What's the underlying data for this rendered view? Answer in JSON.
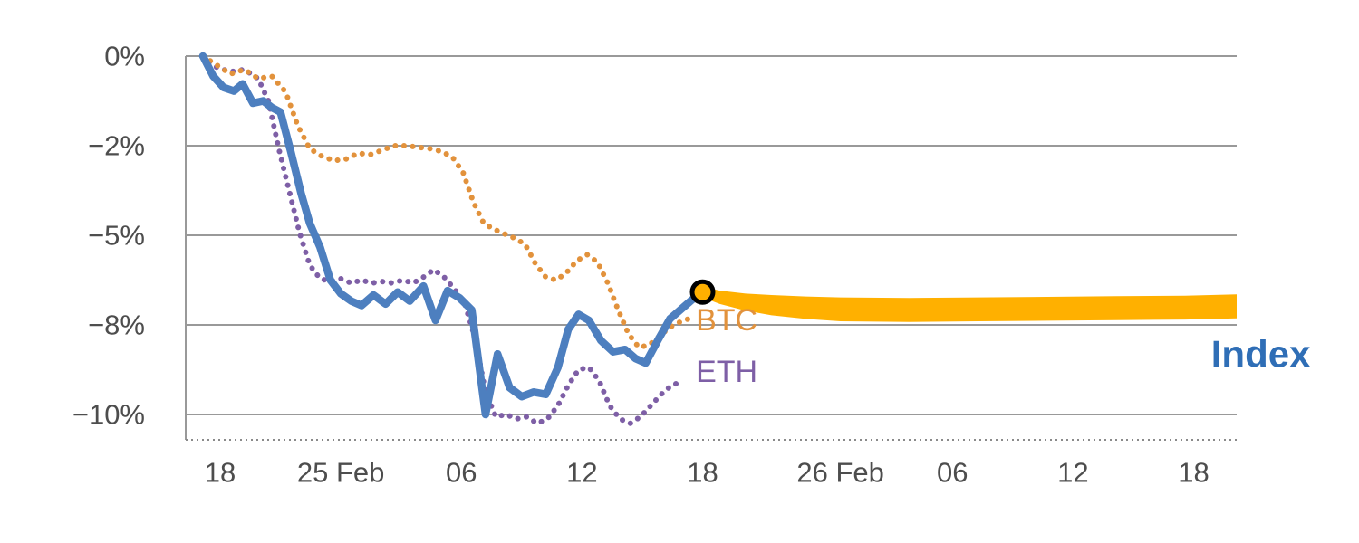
{
  "chart_data": {
    "type": "line",
    "title": "",
    "x_axis": {
      "range": [
        0,
        61
      ],
      "ticks": [
        {
          "x": 2,
          "label": "18"
        },
        {
          "x": 9,
          "label": "25 Feb"
        },
        {
          "x": 16,
          "label": "06"
        },
        {
          "x": 23,
          "label": "12"
        },
        {
          "x": 30,
          "label": "18"
        },
        {
          "x": 38,
          "label": "26 Feb"
        },
        {
          "x": 44.5,
          "label": "06"
        },
        {
          "x": 51.5,
          "label": "12"
        },
        {
          "x": 58.5,
          "label": "18"
        }
      ]
    },
    "y_axis": {
      "unit": "%",
      "gridlines": [
        {
          "value": 0,
          "label": "0%"
        },
        {
          "value": -2,
          "label": "−2%"
        },
        {
          "value": -5,
          "label": "−5%"
        },
        {
          "value": -8,
          "label": "−8%"
        },
        {
          "value": -10,
          "label": "−10%"
        }
      ],
      "spacing": "equal visual spacing between labeled gridlines"
    },
    "colors": {
      "index_line": "#4d7fbf",
      "index_label": "#2f6eb6",
      "btc": "#e2923c",
      "eth": "#7e5fa6",
      "forecast_band": "#ffb000",
      "grid": "#999999",
      "axis_text": "#4d4d4d",
      "marker_stroke": "#000000"
    },
    "series": [
      {
        "name": "Index",
        "style": "solid",
        "color": "#4d7fbf",
        "width": 8.5,
        "points": [
          [
            1.0,
            0
          ],
          [
            1.6,
            -0.45
          ],
          [
            2.2,
            -0.7
          ],
          [
            2.8,
            -0.78
          ],
          [
            3.3,
            -0.62
          ],
          [
            3.9,
            -1.05
          ],
          [
            4.5,
            -1.0
          ],
          [
            5.0,
            -1.15
          ],
          [
            5.5,
            -1.25
          ],
          [
            6.1,
            -2.2
          ],
          [
            6.7,
            -3.6
          ],
          [
            7.2,
            -4.6
          ],
          [
            7.8,
            -5.4
          ],
          [
            8.4,
            -6.5
          ],
          [
            9.0,
            -6.95
          ],
          [
            9.6,
            -7.2
          ],
          [
            10.2,
            -7.35
          ],
          [
            10.9,
            -7.0
          ],
          [
            11.6,
            -7.3
          ],
          [
            12.3,
            -6.9
          ],
          [
            13.0,
            -7.2
          ],
          [
            13.8,
            -6.7
          ],
          [
            14.5,
            -7.85
          ],
          [
            15.2,
            -6.85
          ],
          [
            15.9,
            -7.1
          ],
          [
            16.6,
            -7.5
          ],
          [
            17.4,
            -10.0
          ],
          [
            18.1,
            -8.65
          ],
          [
            18.8,
            -9.4
          ],
          [
            19.5,
            -9.6
          ],
          [
            20.2,
            -9.5
          ],
          [
            20.9,
            -9.55
          ],
          [
            21.6,
            -8.95
          ],
          [
            22.2,
            -8.1
          ],
          [
            22.8,
            -7.65
          ],
          [
            23.4,
            -7.85
          ],
          [
            24.1,
            -8.35
          ],
          [
            24.8,
            -8.6
          ],
          [
            25.5,
            -8.55
          ],
          [
            26.1,
            -8.75
          ],
          [
            26.7,
            -8.85
          ],
          [
            27.4,
            -8.35
          ],
          [
            28.1,
            -7.8
          ],
          [
            28.8,
            -7.45
          ],
          [
            29.4,
            -7.15
          ],
          [
            30.0,
            -6.9
          ]
        ]
      },
      {
        "name": "BTC",
        "style": "dotted",
        "color": "#e2923c",
        "width": 6,
        "points": [
          [
            1.0,
            0
          ],
          [
            1.8,
            -0.2
          ],
          [
            2.6,
            -0.4
          ],
          [
            3.4,
            -0.3
          ],
          [
            4.2,
            -0.5
          ],
          [
            5.0,
            -0.45
          ],
          [
            5.8,
            -0.8
          ],
          [
            6.5,
            -1.55
          ],
          [
            7.2,
            -2.1
          ],
          [
            7.9,
            -2.35
          ],
          [
            8.6,
            -2.5
          ],
          [
            9.3,
            -2.45
          ],
          [
            10.0,
            -2.25
          ],
          [
            10.7,
            -2.3
          ],
          [
            11.4,
            -2.15
          ],
          [
            12.1,
            -2.0
          ],
          [
            12.8,
            -2.0
          ],
          [
            13.5,
            -2.05
          ],
          [
            14.2,
            -2.1
          ],
          [
            14.9,
            -2.2
          ],
          [
            15.5,
            -2.4
          ],
          [
            16.1,
            -2.9
          ],
          [
            16.7,
            -3.9
          ],
          [
            17.3,
            -4.6
          ],
          [
            17.9,
            -4.8
          ],
          [
            18.5,
            -4.95
          ],
          [
            19.1,
            -5.1
          ],
          [
            19.7,
            -5.3
          ],
          [
            20.3,
            -5.95
          ],
          [
            20.9,
            -6.4
          ],
          [
            21.5,
            -6.5
          ],
          [
            22.1,
            -6.25
          ],
          [
            22.7,
            -5.85
          ],
          [
            23.3,
            -5.65
          ],
          [
            23.9,
            -5.9
          ],
          [
            24.5,
            -6.6
          ],
          [
            25.1,
            -7.5
          ],
          [
            25.7,
            -8.2
          ],
          [
            26.3,
            -8.5
          ],
          [
            26.9,
            -8.45
          ],
          [
            27.5,
            -8.25
          ],
          [
            28.1,
            -8.05
          ],
          [
            28.7,
            -7.9
          ],
          [
            29.4,
            -7.75
          ]
        ]
      },
      {
        "name": "ETH",
        "style": "dotted",
        "color": "#7e5fa6",
        "width": 6,
        "points": [
          [
            1.0,
            0
          ],
          [
            1.8,
            -0.25
          ],
          [
            2.6,
            -0.35
          ],
          [
            3.4,
            -0.3
          ],
          [
            4.2,
            -0.5
          ],
          [
            4.8,
            -1.0
          ],
          [
            5.4,
            -2.1
          ],
          [
            6.0,
            -3.5
          ],
          [
            6.6,
            -4.9
          ],
          [
            7.2,
            -6.0
          ],
          [
            7.8,
            -6.45
          ],
          [
            8.4,
            -6.55
          ],
          [
            9.0,
            -6.45
          ],
          [
            9.6,
            -6.6
          ],
          [
            10.2,
            -6.5
          ],
          [
            10.8,
            -6.6
          ],
          [
            11.4,
            -6.55
          ],
          [
            12.0,
            -6.6
          ],
          [
            12.6,
            -6.5
          ],
          [
            13.2,
            -6.6
          ],
          [
            13.8,
            -6.4
          ],
          [
            14.4,
            -6.15
          ],
          [
            15.0,
            -6.4
          ],
          [
            15.6,
            -6.8
          ],
          [
            16.2,
            -7.3
          ],
          [
            16.8,
            -8.3
          ],
          [
            17.4,
            -9.5
          ],
          [
            18.0,
            -10.05
          ],
          [
            18.6,
            -10.0
          ],
          [
            19.2,
            -10.1
          ],
          [
            19.8,
            -10.05
          ],
          [
            20.4,
            -10.2
          ],
          [
            21.0,
            -10.1
          ],
          [
            21.6,
            -9.8
          ],
          [
            22.2,
            -9.35
          ],
          [
            22.8,
            -9.0
          ],
          [
            23.4,
            -8.95
          ],
          [
            24.0,
            -9.25
          ],
          [
            24.6,
            -9.8
          ],
          [
            25.2,
            -10.1
          ],
          [
            25.8,
            -10.2
          ],
          [
            26.4,
            -10.05
          ],
          [
            27.0,
            -9.8
          ],
          [
            27.6,
            -9.55
          ],
          [
            28.2,
            -9.35
          ],
          [
            28.9,
            -9.25
          ]
        ]
      }
    ],
    "forecast_band": {
      "name": "Index forecast",
      "color": "#ffb000",
      "x": [
        30.0,
        31.0,
        32.5,
        34.0,
        36.0,
        38.0,
        42.0,
        46.0,
        50.0,
        54.0,
        58.0,
        61.0
      ],
      "upper": [
        -6.72,
        -6.85,
        -6.95,
        -7.0,
        -7.05,
        -7.08,
        -7.1,
        -7.08,
        -7.06,
        -7.04,
        -7.02,
        -6.98
      ],
      "lower": [
        -7.08,
        -7.3,
        -7.52,
        -7.68,
        -7.8,
        -7.88,
        -7.9,
        -7.88,
        -7.86,
        -7.84,
        -7.82,
        -7.78
      ]
    },
    "marker": {
      "x": 30.0,
      "y": -6.9,
      "radius": 11.5,
      "fill": "#ffb000",
      "stroke": "#000000",
      "stroke_width": 5
    },
    "annotations": [
      {
        "id": "btc-label",
        "text": "BTC",
        "x": 31.4,
        "y": -7.85,
        "color": "#e2923c",
        "font_size": 34,
        "bold": false
      },
      {
        "id": "eth-label",
        "text": "ETH",
        "x": 31.4,
        "y": -9.05,
        "color": "#7e5fa6",
        "font_size": 34,
        "bold": false
      },
      {
        "id": "index-label",
        "text": "Index",
        "x": 62.4,
        "y": -8.65,
        "color": "#2f6eb6",
        "font_size": 42,
        "bold": true
      }
    ]
  }
}
